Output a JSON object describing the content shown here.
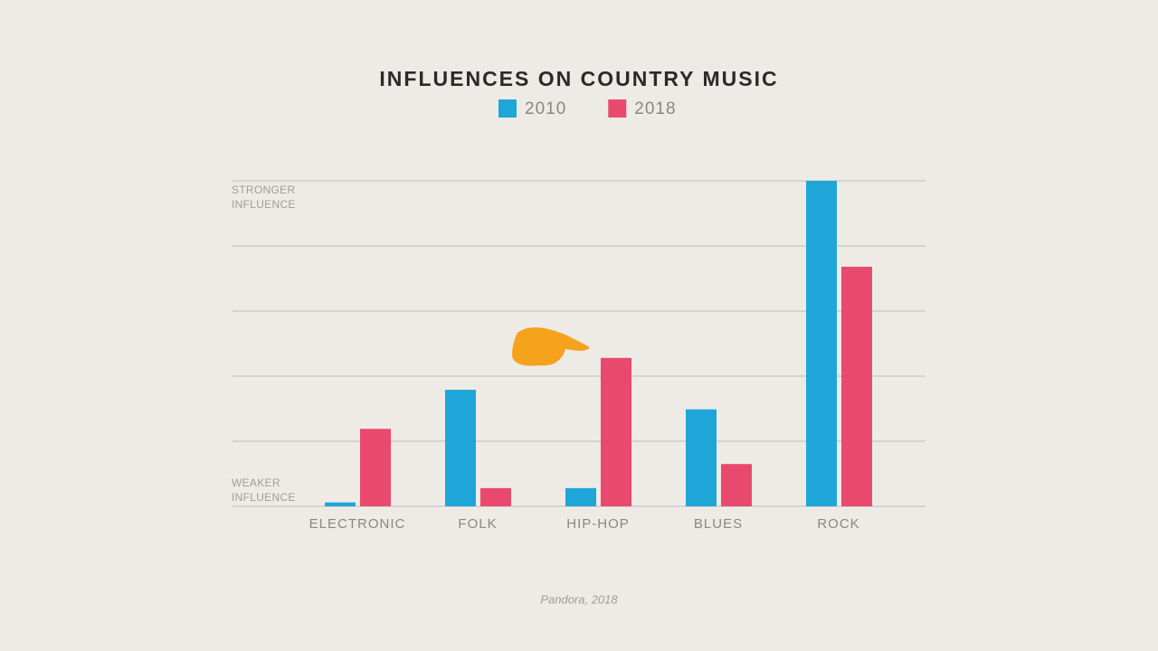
{
  "chart_data": {
    "type": "bar",
    "title": "INFLUENCES ON COUNTRY MUSIC",
    "categories": [
      "ELECTRONIC",
      "FOLK",
      "HIP-HOP",
      "BLUES",
      "ROCK"
    ],
    "series": [
      {
        "name": "2010",
        "color": "#1fa6d8",
        "values": [
          0.06,
          1.79,
          0.28,
          1.49,
          5.0
        ]
      },
      {
        "name": "2018",
        "color": "#e9496d",
        "values": [
          1.19,
          0.28,
          2.28,
          0.65,
          3.68
        ]
      }
    ],
    "ylim": [
      0,
      5
    ],
    "yticks": [
      0,
      1,
      2,
      3,
      4,
      5
    ],
    "grid": true,
    "y_top_label": "STRONGER INFLUENCE",
    "y_bottom_label": "WEAKER INFLUENCE",
    "source": "Pandora, 2018"
  }
}
